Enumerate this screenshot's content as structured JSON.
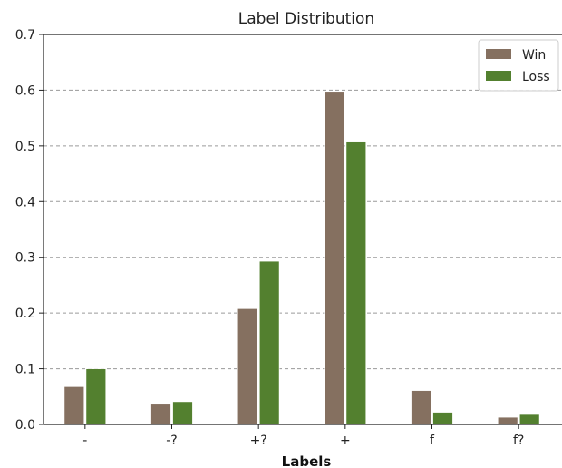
{
  "chart_data": {
    "type": "bar",
    "title": "Label Distribution",
    "xlabel": "Labels",
    "ylabel": "",
    "categories": [
      "-",
      "-?",
      "+?",
      "+",
      "f",
      "f?"
    ],
    "series": [
      {
        "name": "Win",
        "color": "#857060",
        "values": [
          0.068,
          0.038,
          0.208,
          0.598,
          0.061,
          0.013
        ]
      },
      {
        "name": "Loss",
        "color": "#53802f",
        "values": [
          0.1,
          0.041,
          0.293,
          0.507,
          0.022,
          0.018
        ]
      }
    ],
    "ylim": [
      0,
      0.7
    ],
    "yticks": [
      0.0,
      0.1,
      0.2,
      0.3,
      0.4,
      0.5,
      0.6,
      0.7
    ],
    "ytick_labels": [
      "0.0",
      "0.1",
      "0.2",
      "0.3",
      "0.4",
      "0.5",
      "0.6",
      "0.7"
    ],
    "grid": "y-dashed",
    "legend": "top-right"
  }
}
